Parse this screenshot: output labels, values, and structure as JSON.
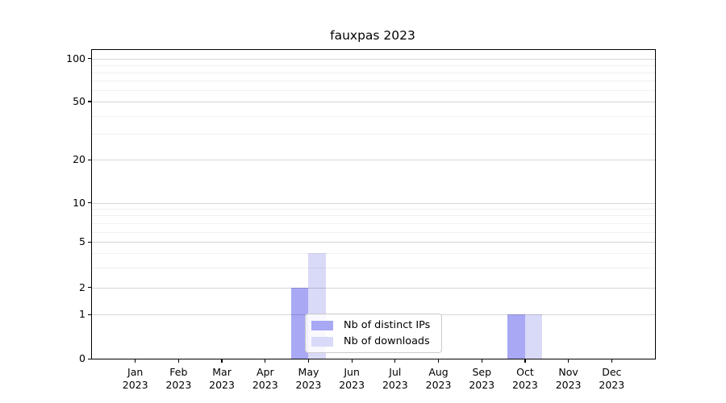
{
  "chart_data": {
    "type": "bar",
    "title": "fauxpas 2023",
    "xlabel": "",
    "ylabel": "",
    "year_label": "2023",
    "categories": [
      "Jan",
      "Feb",
      "Mar",
      "Apr",
      "May",
      "Jun",
      "Jul",
      "Aug",
      "Sep",
      "Oct",
      "Nov",
      "Dec"
    ],
    "series": [
      {
        "name": "Nb of distinct IPs",
        "color": "#a8a8f5",
        "values": [
          0,
          0,
          0,
          0,
          2,
          0,
          0,
          0,
          0,
          1,
          0,
          0
        ]
      },
      {
        "name": "Nb of downloads",
        "color": "#d9d9f8",
        "values": [
          0,
          0,
          0,
          0,
          4,
          0,
          0,
          0,
          0,
          1,
          0,
          0
        ]
      }
    ],
    "y_axis": {
      "scale": "symlog",
      "major_ticks": [
        0,
        1,
        2,
        5,
        10,
        20,
        50,
        100
      ],
      "minor_gridlines": [
        3,
        4,
        6,
        7,
        8,
        9,
        30,
        40,
        60,
        70,
        80,
        90
      ],
      "range": [
        0,
        110
      ]
    },
    "x_axis": {
      "tick_count": 12
    },
    "grid": "horizontal",
    "legend_position": "lower center-left inside plot"
  },
  "colors": {
    "bar_distinct_ips": "#a8a8f5",
    "bar_downloads": "#d9d9f8",
    "grid_major": "#d9d9d9",
    "grid_minor": "#f0f0f0",
    "legend_border": "#cccccc",
    "axis": "#000000"
  }
}
